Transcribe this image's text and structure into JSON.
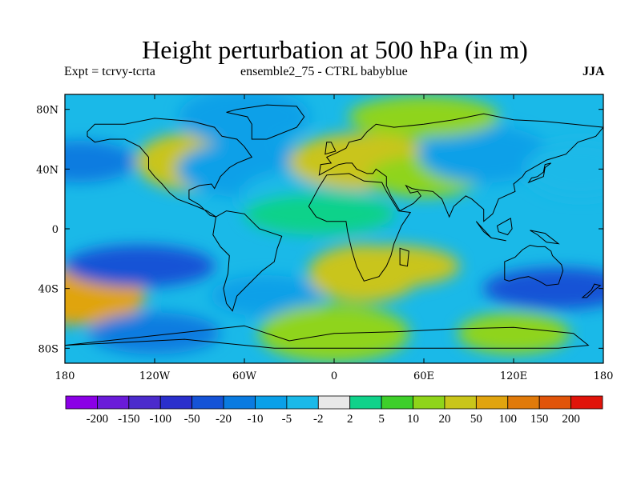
{
  "chart_data": {
    "type": "heatmap",
    "title": "Height perturbation at 500 hPa (in m)",
    "left_label": "Expt = tcrvy-tcrta",
    "center_label": "ensemble2_75 - CTRL babyblue",
    "right_label": "JJA",
    "projection": "cylindrical equidistant, global",
    "xlim": [
      -180,
      180
    ],
    "ylim": [
      -90,
      90
    ],
    "x_ticks": [
      {
        "lon": -180,
        "label": "180"
      },
      {
        "lon": -120,
        "label": "120W"
      },
      {
        "lon": -60,
        "label": "60W"
      },
      {
        "lon": 0,
        "label": "0"
      },
      {
        "lon": 60,
        "label": "60E"
      },
      {
        "lon": 120,
        "label": "120E"
      },
      {
        "lon": 180,
        "label": "180"
      }
    ],
    "y_ticks": [
      {
        "lat": 80,
        "label": "80N"
      },
      {
        "lat": 40,
        "label": "40N"
      },
      {
        "lat": 0,
        "label": "0"
      },
      {
        "lat": -40,
        "label": "40S"
      },
      {
        "lat": -80,
        "label": "80S"
      }
    ],
    "colorbar": {
      "levels": [
        "-200",
        "-150",
        "-100",
        "-50",
        "-20",
        "-10",
        "-5",
        "-2",
        "2",
        "5",
        "10",
        "20",
        "50",
        "100",
        "150",
        "200"
      ],
      "colors": [
        "#8b00e6",
        "#6a1bd9",
        "#4b2bcc",
        "#2a2fcc",
        "#1553d6",
        "#0a7be0",
        "#0aa0e8",
        "#1ab9e8",
        "#e8e8e8",
        "#10d28a",
        "#3ecf2a",
        "#8fd41a",
        "#c9c51a",
        "#e0a40f",
        "#e07a0a",
        "#e0540a",
        "#e0140a"
      ]
    },
    "anomaly_centers": [
      {
        "lon": -170,
        "lat": 45,
        "value": -20
      },
      {
        "lon": -170,
        "lat": -45,
        "value": 50
      },
      {
        "lon": -130,
        "lat": -25,
        "value": -50
      },
      {
        "lon": -95,
        "lat": 45,
        "value": 20
      },
      {
        "lon": -70,
        "lat": 40,
        "value": 20
      },
      {
        "lon": -55,
        "lat": 40,
        "value": -10
      },
      {
        "lon": -45,
        "lat": -45,
        "value": -10
      },
      {
        "lon": -20,
        "lat": 20,
        "value": -5
      },
      {
        "lon": -10,
        "lat": 10,
        "value": 2
      },
      {
        "lon": 20,
        "lat": -30,
        "value": 20
      },
      {
        "lon": 40,
        "lat": -25,
        "value": 20
      },
      {
        "lon": 20,
        "lat": 45,
        "value": 20
      },
      {
        "lon": 60,
        "lat": 35,
        "value": 10
      },
      {
        "lon": 100,
        "lat": 50,
        "value": -10
      },
      {
        "lon": 150,
        "lat": -40,
        "value": -50
      },
      {
        "lon": 165,
        "lat": 40,
        "value": -5
      },
      {
        "lon": -120,
        "lat": -70,
        "value": -20
      },
      {
        "lon": 0,
        "lat": -70,
        "value": 10
      },
      {
        "lon": 120,
        "lat": -70,
        "value": 10
      },
      {
        "lon": -60,
        "lat": 75,
        "value": -10
      },
      {
        "lon": 60,
        "lat": 75,
        "value": 10
      }
    ]
  }
}
